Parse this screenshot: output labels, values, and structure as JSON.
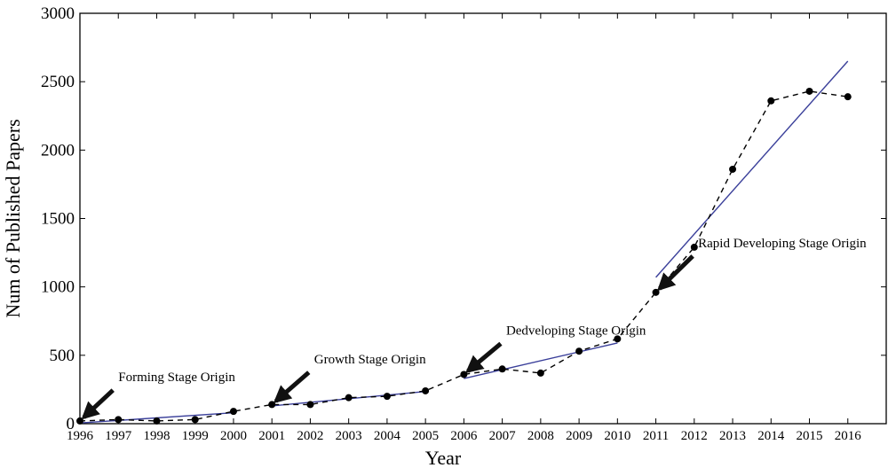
{
  "chart_data": {
    "type": "line",
    "title": "",
    "xlabel": "Year",
    "ylabel": "Num of Published Papers",
    "xlim": [
      1996,
      2017
    ],
    "ylim": [
      0,
      3000
    ],
    "x_ticks": [
      1996,
      1997,
      1998,
      1999,
      2000,
      2001,
      2002,
      2003,
      2004,
      2005,
      2006,
      2007,
      2008,
      2009,
      2010,
      2011,
      2012,
      2013,
      2014,
      2015,
      2016
    ],
    "y_ticks": [
      0,
      500,
      1000,
      1500,
      2000,
      2500,
      3000
    ],
    "grid": false,
    "series": [
      {
        "style": "dashed-with-markers",
        "color": "#000000",
        "x": [
          1996,
          1997,
          1998,
          1999,
          2000,
          2001,
          2002,
          2003,
          2004,
          2005,
          2006,
          2007,
          2008,
          2009,
          2010,
          2011,
          2012,
          2013,
          2014,
          2015,
          2016
        ],
        "y": [
          20,
          30,
          20,
          30,
          90,
          140,
          140,
          190,
          200,
          240,
          360,
          400,
          370,
          530,
          620,
          960,
          1290,
          1860,
          2360,
          2430,
          2390
        ]
      }
    ],
    "trend_lines": [
      {
        "color": "#3a3f9a",
        "x": [
          1996,
          2000
        ],
        "y": [
          5,
          80
        ]
      },
      {
        "color": "#3a3f9a",
        "x": [
          2001,
          2005
        ],
        "y": [
          130,
          235
        ]
      },
      {
        "color": "#3a3f9a",
        "x": [
          2006,
          2010
        ],
        "y": [
          330,
          590
        ]
      },
      {
        "color": "#3a3f9a",
        "x": [
          2011,
          2016
        ],
        "y": [
          1070,
          2650
        ]
      }
    ],
    "annotations": [
      {
        "text": "Forming Stage Origin",
        "target": [
          1996,
          20
        ],
        "text_anchor": [
          1997,
          310
        ]
      },
      {
        "text": "Growth Stage Origin",
        "target": [
          2001,
          140
        ],
        "text_anchor": [
          2002.1,
          440
        ]
      },
      {
        "text": "Dedveloping Stage Origin",
        "target": [
          2006,
          360
        ],
        "text_anchor": [
          2007.1,
          650
        ]
      },
      {
        "text": "Rapid Developing Stage Origin",
        "target": [
          2011,
          960
        ],
        "text_anchor": [
          2012.1,
          1290
        ]
      }
    ]
  }
}
